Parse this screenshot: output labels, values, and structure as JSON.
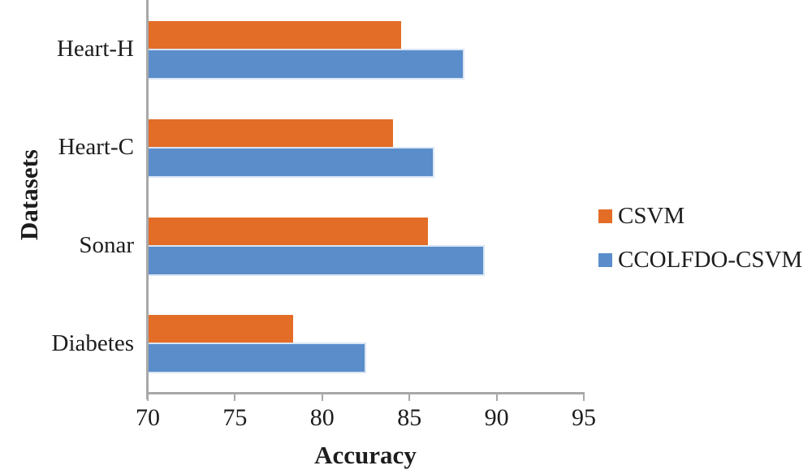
{
  "chart_data": {
    "type": "bar",
    "orientation": "horizontal",
    "title": "",
    "xlabel": "Accuracy",
    "ylabel": "Datasets",
    "categories": [
      "Heart-H",
      "Heart-C",
      "Sonar",
      "Diabetes"
    ],
    "series": [
      {
        "name": "CSVM",
        "color": "#e36c26",
        "values": [
          84.5,
          84.0,
          86.0,
          78.3
        ]
      },
      {
        "name": "CCOLFDO-CSVM",
        "color": "#5b8dcb",
        "values": [
          88.0,
          86.3,
          89.2,
          82.4
        ]
      }
    ],
    "xlim": [
      70,
      95
    ],
    "xticks": [
      70,
      75,
      80,
      85,
      90,
      95
    ],
    "grid": false,
    "legend_position": "right",
    "axis_color": "#a8a8a8"
  },
  "legend": {
    "items": [
      {
        "label": "CSVM"
      },
      {
        "label": "CCOLFDO-CSVM"
      }
    ]
  }
}
